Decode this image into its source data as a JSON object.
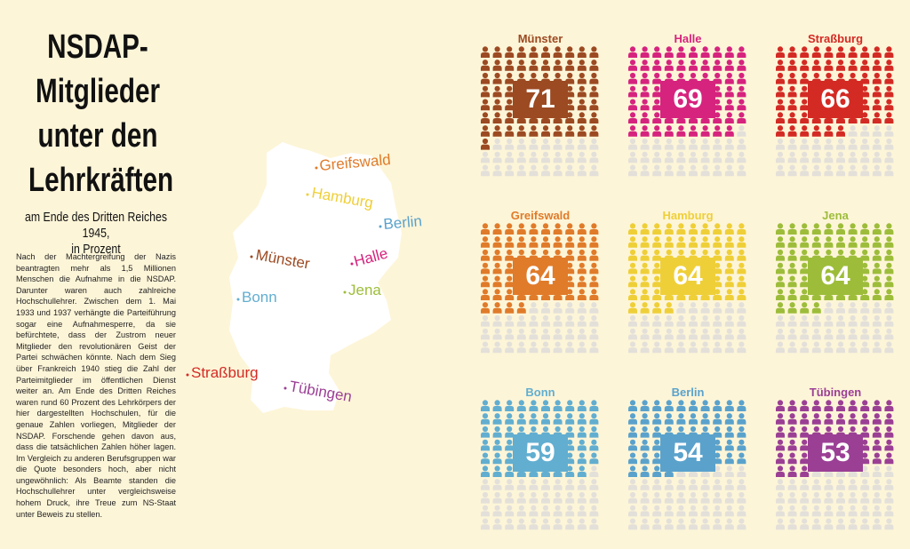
{
  "header": {
    "title": "NSDAP-\nMitglieder\nunter den\nLehrkräften",
    "subtitle": "am Ende des Dritten Reiches 1945,\nin Prozent"
  },
  "body": "Nach der Machtergreifung der Nazis beantragten mehr als 1,5 Millionen Menschen die Aufnahme in die NSDAP. Darunter waren auch zahlreiche Hochschullehrer. Zwischen dem 1. Mai 1933 und 1937 verhängte die Parteiführung sogar eine Aufnahmesperre, da sie befürchtete, dass der Zustrom neuer Mitglieder den revolutionären Geist der Partei schwächen könnte. Nach dem Sieg über Frankreich 1940 stieg die Zahl der Parteimitglieder im öffentlichen Dienst weiter an. Am Ende des Dritten Reiches waren rund 60 Prozent des Lehrkörpers der hier dargestellten Hochschulen, für die genaue Zahlen vorliegen, Mitglieder der NSDAP. Forschende gehen davon aus, dass die tatsächlichen Zahlen höher lagen. Im Vergleich zu anderen Berufsgruppen war die Quote besonders hoch, aber nicht ungewöhnlich: Als Beamte standen die Hochschullehrer unter vergleichsweise hohem Druck, ihre Treue zum NS-Staat unter Beweis zu stellen.",
  "chart_data": [
    {
      "type": "waffle",
      "title": "Münster",
      "value": 71,
      "color": "#9c4a22"
    },
    {
      "type": "waffle",
      "title": "Halle",
      "value": 69,
      "color": "#d6237e"
    },
    {
      "type": "waffle",
      "title": "Straßburg",
      "value": 66,
      "color": "#d42a24"
    },
    {
      "type": "waffle",
      "title": "Greifswald",
      "value": 64,
      "color": "#e07b2a"
    },
    {
      "type": "waffle",
      "title": "Hamburg",
      "value": 64,
      "color": "#efcf38"
    },
    {
      "type": "waffle",
      "title": "Jena",
      "value": 64,
      "color": "#9dbd3a"
    },
    {
      "type": "waffle",
      "title": "Bonn",
      "value": 59,
      "color": "#62aed0"
    },
    {
      "type": "waffle",
      "title": "Berlin",
      "value": 54,
      "color": "#5aa2cc"
    },
    {
      "type": "waffle",
      "title": "Tübingen",
      "value": 53,
      "color": "#9b3f95"
    }
  ]
}
